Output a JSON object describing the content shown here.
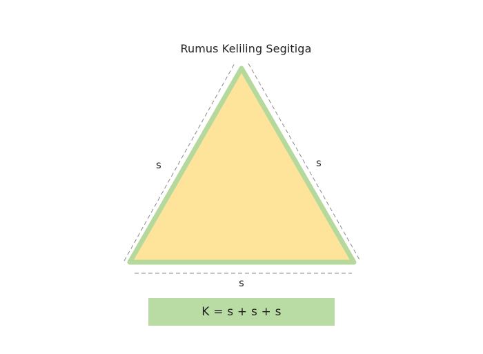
{
  "title": "Rumus Keliling Segitiga",
  "labels": {
    "left_side": "s",
    "right_side": "s",
    "bottom_side": "s"
  },
  "formula": "K = s + s + s",
  "colors": {
    "triangle_fill": "#fde49a",
    "triangle_border": "#b5d99c",
    "formula_background": "#b9dca5",
    "dashed_line": "#8a8a8a"
  }
}
